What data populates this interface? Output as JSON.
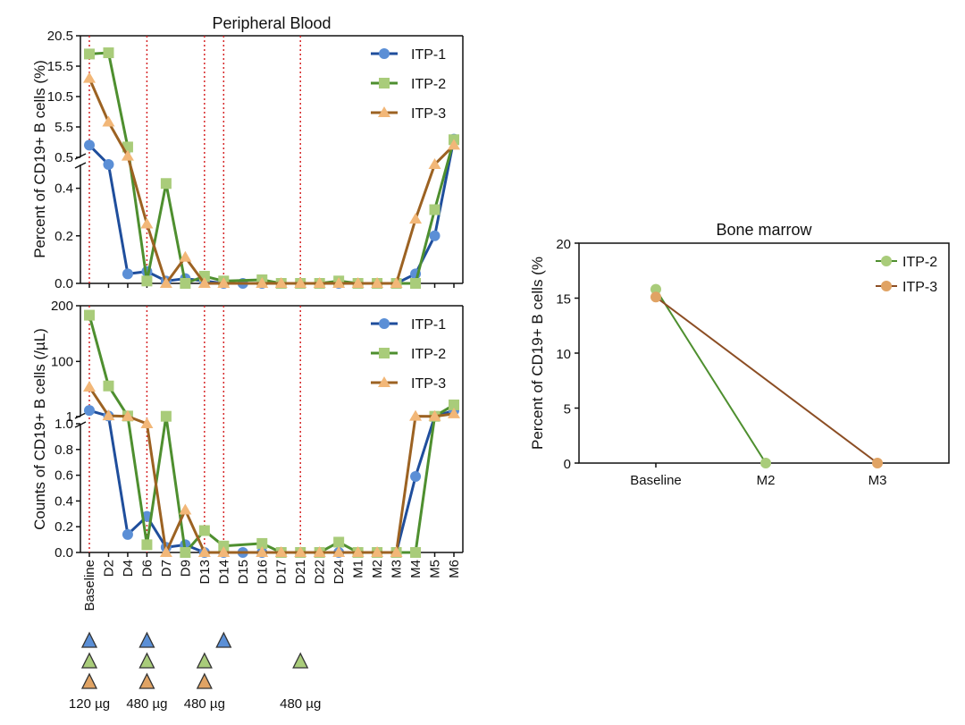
{
  "chart_data": [
    {
      "type": "line",
      "panel": "top",
      "title": "Peripheral Blood",
      "ylabel": "Percent of CD19+ B cells (%)",
      "categories": [
        "Baseline",
        "D2",
        "D4",
        "D6",
        "D7",
        "D9",
        "D13",
        "D14",
        "D15",
        "D16",
        "D17",
        "D21",
        "D22",
        "D24",
        "M1",
        "M2",
        "M3",
        "M4",
        "M5",
        "M6"
      ],
      "axis_break": true,
      "ylim_lower": [
        0,
        0.5
      ],
      "ylim_upper": [
        0.5,
        20.5
      ],
      "yticks_lower": [
        "0.0",
        "0.2",
        "0.4"
      ],
      "yticks_upper": [
        "0.5",
        "5.5",
        "10.5",
        "15.5",
        "20.5"
      ],
      "vlines_at": [
        "Baseline",
        "D6",
        "D13",
        "D14",
        "D21"
      ],
      "legend": [
        "ITP-1",
        "ITP-2",
        "ITP-3"
      ],
      "legend_position": "top-right",
      "series": [
        {
          "name": "ITP-1",
          "color": "#5b8fd6",
          "line_color": "#1f4e9c",
          "marker": "circle",
          "x": [
            "Baseline",
            "D2",
            "D4",
            "D6",
            "D7",
            "D9",
            "D13",
            "D14",
            "D15",
            "D16",
            "D17",
            "D21",
            "D22",
            "D24",
            "M1",
            "M2",
            "M3",
            "M4",
            "M5",
            "M6"
          ],
          "values": [
            2.5,
            0.5,
            0.04,
            0.05,
            0.01,
            0.02,
            0.01,
            0.0,
            0.0,
            0.0,
            0.0,
            0.0,
            0.0,
            0.0,
            0.0,
            0.0,
            0.0,
            0.04,
            0.2,
            3.5
          ]
        },
        {
          "name": "ITP-2",
          "color": "#a9cc7a",
          "line_color": "#4e8f2f",
          "marker": "square",
          "x": [
            "Baseline",
            "D2",
            "D4",
            "D6",
            "D7",
            "D9",
            "D13",
            "D14",
            "D16",
            "D17",
            "D21",
            "D22",
            "D24",
            "M1",
            "M2",
            "M3",
            "M4",
            "M5",
            "M6"
          ],
          "values": [
            17.5,
            17.7,
            2.2,
            0.01,
            0.42,
            0.0,
            0.03,
            0.01,
            0.015,
            0.0,
            0.0,
            0.0,
            0.01,
            0.0,
            0.0,
            0.0,
            0.0,
            0.31,
            3.4
          ]
        },
        {
          "name": "ITP-3",
          "color": "#f2b778",
          "line_color": "#9c6222",
          "marker": "triangle",
          "x": [
            "Baseline",
            "D2",
            "D4",
            "D6",
            "D7",
            "D9",
            "D13",
            "D14",
            "D16",
            "D17",
            "D21",
            "D22",
            "D24",
            "M1",
            "M2",
            "M3",
            "M4",
            "M5",
            "M6"
          ],
          "values": [
            13.5,
            6.3,
            0.7,
            0.25,
            0.0,
            0.11,
            0.0,
            0.0,
            0.0,
            0.0,
            0.0,
            0.0,
            0.0,
            0.0,
            0.0,
            0.0,
            0.27,
            0.5,
            2.5
          ]
        }
      ]
    },
    {
      "type": "line",
      "panel": "bottom",
      "ylabel": "Counts of CD19+ B cells (/µL)",
      "categories": [
        "Baseline",
        "D2",
        "D4",
        "D6",
        "D7",
        "D9",
        "D13",
        "D14",
        "D15",
        "D16",
        "D17",
        "D21",
        "D22",
        "D24",
        "M1",
        "M2",
        "M3",
        "M4",
        "M5",
        "M6"
      ],
      "axis_break": true,
      "ylim_lower": [
        0,
        1
      ],
      "ylim_upper": [
        1,
        200
      ],
      "yticks_lower": [
        "0.0",
        "0.2",
        "0.4",
        "0.6",
        "0.8",
        "1.0"
      ],
      "yticks_upper": [
        "1",
        "100",
        "200"
      ],
      "vlines_at": [
        "Baseline",
        "D6",
        "D13",
        "D14",
        "D21"
      ],
      "legend": [
        "ITP-1",
        "ITP-2",
        "ITP-3"
      ],
      "legend_position": "top-right",
      "series": [
        {
          "name": "ITP-1",
          "color": "#5b8fd6",
          "line_color": "#1f4e9c",
          "marker": "circle",
          "x": [
            "Baseline",
            "D2",
            "D4",
            "D6",
            "D7",
            "D9",
            "D13",
            "D14",
            "D15",
            "D16",
            "D17",
            "D21",
            "D22",
            "D24",
            "M1",
            "M2",
            "M3",
            "M4",
            "M5",
            "M6"
          ],
          "values": [
            12,
            2,
            0.14,
            0.28,
            0.04,
            0.06,
            0.0,
            0.0,
            0.0,
            0.0,
            0.0,
            0.0,
            0.0,
            0.0,
            0.0,
            0.0,
            0.0,
            0.59,
            1.3,
            12
          ]
        },
        {
          "name": "ITP-2",
          "color": "#a9cc7a",
          "line_color": "#4e8f2f",
          "marker": "square",
          "x": [
            "Baseline",
            "D2",
            "D4",
            "D6",
            "D7",
            "D9",
            "D13",
            "D14",
            "D16",
            "D17",
            "D21",
            "D22",
            "D24",
            "M1",
            "M2",
            "M3",
            "M4",
            "M5",
            "M6"
          ],
          "values": [
            183,
            56,
            2,
            0.06,
            1.5,
            0.0,
            0.17,
            0.05,
            0.07,
            0.0,
            0.0,
            0.0,
            0.08,
            0.0,
            0.0,
            0.0,
            0.0,
            1.5,
            22
          ]
        },
        {
          "name": "ITP-3",
          "color": "#f2b778",
          "line_color": "#9c6222",
          "marker": "triangle",
          "x": [
            "Baseline",
            "D2",
            "D4",
            "D6",
            "D7",
            "D9",
            "D13",
            "D14",
            "D16",
            "D17",
            "D21",
            "D22",
            "D24",
            "M1",
            "M2",
            "M3",
            "M4",
            "M5",
            "M6"
          ],
          "values": [
            54,
            2.5,
            1.5,
            1.0,
            0.0,
            0.33,
            0.0,
            0.0,
            0.0,
            0.0,
            0.0,
            0.0,
            0.0,
            0.0,
            0.0,
            0.0,
            1.6,
            1.5,
            6
          ]
        }
      ]
    },
    {
      "type": "line",
      "panel": "right",
      "title": "Bone marrow",
      "ylabel": "Percent of CD19+ B cells (%",
      "categories": [
        "Baseline",
        "M2",
        "M3"
      ],
      "ylim": [
        0,
        20
      ],
      "yticks": [
        "0",
        "5",
        "10",
        "15",
        "20"
      ],
      "legend": [
        "ITP-2",
        "ITP-3"
      ],
      "legend_position": "top-right",
      "series": [
        {
          "name": "ITP-2",
          "color": "#a9cc7a",
          "line_color": "#4e8f2f",
          "marker": "circle",
          "x": [
            "Baseline",
            "M2"
          ],
          "values": [
            15.8,
            0
          ]
        },
        {
          "name": "ITP-3",
          "color": "#e0a364",
          "line_color": "#8c4e24",
          "marker": "circle",
          "x": [
            "Baseline",
            "M3"
          ],
          "values": [
            15.1,
            0
          ]
        }
      ]
    }
  ],
  "doses": {
    "markers": [
      {
        "series": "ITP-1",
        "color": "#5b8fd6",
        "at": [
          "Baseline",
          "D6",
          "D14"
        ]
      },
      {
        "series": "ITP-2",
        "color": "#a9cc7a",
        "at": [
          "Baseline",
          "D6",
          "D13",
          "D21"
        ]
      },
      {
        "series": "ITP-3",
        "color": "#e0a364",
        "at": [
          "Baseline",
          "D6",
          "D13"
        ]
      }
    ],
    "labels": [
      {
        "at": "Baseline",
        "text": "120 µg"
      },
      {
        "at": "D6",
        "text": "480 µg"
      },
      {
        "at": "D13",
        "text": "480 µg"
      },
      {
        "at": "D21",
        "text": "480 µg"
      }
    ]
  }
}
